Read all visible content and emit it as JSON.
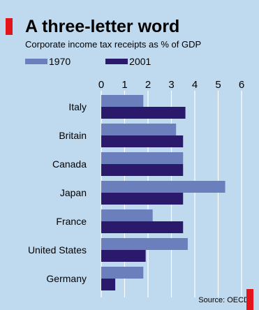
{
  "chart_data": {
    "type": "bar",
    "orientation": "horizontal",
    "title": "A three-letter word",
    "subtitle": "Corporate income tax receipts as % of GDP",
    "categories": [
      "Italy",
      "Britain",
      "Canada",
      "Japan",
      "France",
      "United States",
      "Germany"
    ],
    "series": [
      {
        "name": "1970",
        "color": "#6b7fbd",
        "values": [
          1.8,
          3.2,
          3.5,
          5.3,
          2.2,
          3.7,
          1.8
        ]
      },
      {
        "name": "2001",
        "color": "#2b1a6b",
        "values": [
          3.6,
          3.5,
          3.5,
          3.5,
          3.5,
          1.9,
          0.6
        ]
      }
    ],
    "xlim": [
      0,
      6
    ],
    "xticks": [
      "0",
      "1",
      "2",
      "3",
      "4",
      "5",
      "6"
    ],
    "grid": true,
    "legend_position": "top-left",
    "source": "Source: OECD"
  },
  "colors": {
    "background": "#bfd9ef",
    "grid": "#ffffff",
    "accent": "#e4141b"
  }
}
